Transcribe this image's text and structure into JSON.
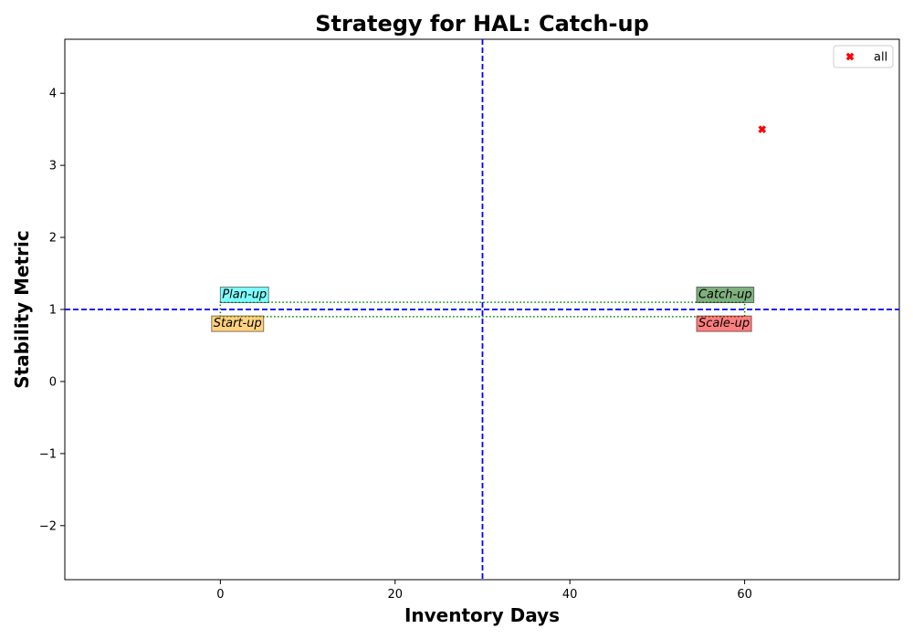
{
  "chart_data": {
    "type": "scatter",
    "title": "Strategy for HAL: Catch-up",
    "xlabel": "Inventory Days",
    "ylabel": "Stability Metric",
    "xlim": [
      -17.8,
      77.7
    ],
    "ylim": [
      -2.75,
      4.75
    ],
    "xticks": [
      0,
      20,
      40,
      60
    ],
    "yticks": [
      -2,
      -1,
      0,
      1,
      2,
      3,
      4
    ],
    "tick_labels_x": [
      "0",
      "20",
      "40",
      "60"
    ],
    "tick_labels_y": [
      "−2",
      "−1",
      "0",
      "1",
      "2",
      "3",
      "4"
    ],
    "grid": false,
    "legend": {
      "position": "top-right",
      "entries": [
        "all"
      ]
    },
    "series": [
      {
        "name": "all",
        "marker": "x-filled",
        "color": "#ff0000",
        "points": [
          {
            "x": 62,
            "y": 3.5
          }
        ]
      }
    ],
    "reference_lines": [
      {
        "orientation": "vertical",
        "value": 30,
        "color": "#0000ff",
        "style": "dashed"
      },
      {
        "orientation": "horizontal",
        "value": 1,
        "color": "#0000ff",
        "style": "dashed"
      }
    ],
    "band": {
      "x": [
        0,
        60
      ],
      "y": [
        0.9,
        1.1
      ],
      "color": "#008000",
      "style": "dotted"
    },
    "quadrant_labels": [
      {
        "text": "Plan-up",
        "x": 0,
        "y": 1.12,
        "color": "#00ffff"
      },
      {
        "text": "Catch-up",
        "x": 54.5,
        "y": 1.12,
        "color": "#006400"
      },
      {
        "text": "Start-up",
        "x": -1,
        "y": 0.72,
        "color": "#ffa500"
      },
      {
        "text": "Scale-up",
        "x": 54.5,
        "y": 0.72,
        "color": "#ff0000"
      }
    ]
  }
}
